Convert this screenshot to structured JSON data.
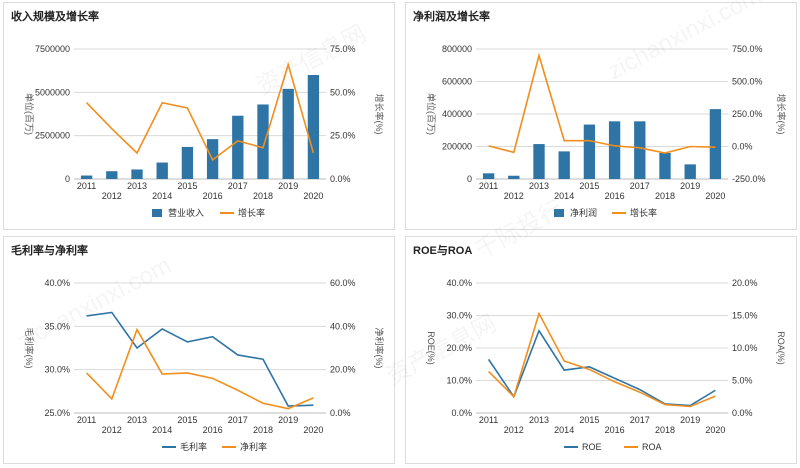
{
  "watermarks": [
    "资产信息网",
    "zichanxinxi.com",
    "千际投行"
  ],
  "colors": {
    "bar": "#2e75a6",
    "orange": "#f28e1c",
    "blueLine": "#2e75a6",
    "grid": "#d9d9d9"
  },
  "chart_data": [
    {
      "type": "bar",
      "title": "收入规模及增长率",
      "categories": [
        "2011",
        "2012",
        "2013",
        "2014",
        "2015",
        "2016",
        "2017",
        "2018",
        "2019",
        "2020"
      ],
      "ylabel": "单位(百万)",
      "y2label": "增长率(%)",
      "ylim": [
        0,
        7500000
      ],
      "yticks": [
        "0",
        "2500000",
        "5000000",
        "7500000"
      ],
      "y2lim": [
        0,
        75
      ],
      "y2ticks": [
        "0.0%",
        "25.0%",
        "50.0%",
        "75.0%"
      ],
      "grid": true,
      "legend_position": "bottom",
      "series": [
        {
          "name": "营业收入",
          "kind": "bar",
          "axis": "left",
          "values": [
            200000,
            450000,
            550000,
            950000,
            1850000,
            2300000,
            3650000,
            4300000,
            5200000,
            6000000
          ]
        },
        {
          "name": "增长率",
          "kind": "line",
          "axis": "right",
          "values": [
            44,
            29,
            15,
            44,
            41,
            11,
            22,
            18,
            66,
            15
          ]
        }
      ]
    },
    {
      "type": "bar",
      "title": "净利润及增长率",
      "categories": [
        "2011",
        "2012",
        "2013",
        "2014",
        "2015",
        "2016",
        "2017",
        "2018",
        "2019",
        "2020"
      ],
      "ylabel": "单位(百万)",
      "y2label": "增长率(%)",
      "ylim": [
        0,
        800000
      ],
      "yticks": [
        "0",
        "200000",
        "400000",
        "600000",
        "800000"
      ],
      "y2lim": [
        -250,
        750
      ],
      "y2ticks": [
        "-250.0%",
        "0.0%",
        "250.0%",
        "500.0%",
        "750.0%"
      ],
      "grid": true,
      "legend_position": "bottom",
      "series": [
        {
          "name": "净利润",
          "kind": "bar",
          "axis": "left",
          "values": [
            35000,
            20000,
            215000,
            170000,
            335000,
            355000,
            355000,
            160000,
            90000,
            430000
          ]
        },
        {
          "name": "增长率",
          "kind": "line",
          "axis": "right",
          "values": [
            5,
            -45,
            700,
            45,
            45,
            5,
            -10,
            -50,
            0,
            -5
          ]
        }
      ]
    },
    {
      "type": "line",
      "title": "毛利率与净利率",
      "categories": [
        "2011",
        "2012",
        "2013",
        "2014",
        "2015",
        "2016",
        "2017",
        "2018",
        "2019",
        "2020"
      ],
      "ylabel": "毛利率(%)",
      "y2label": "净利率(%)",
      "ylim": [
        25,
        40
      ],
      "yticks": [
        "25.0%",
        "30.0%",
        "35.0%",
        "40.0%"
      ],
      "y2lim": [
        0,
        60
      ],
      "y2ticks": [
        "0.0%",
        "20.0%",
        "40.0%",
        "60.0%"
      ],
      "grid": true,
      "legend_position": "bottom",
      "series": [
        {
          "name": "毛利率",
          "kind": "line",
          "axis": "left",
          "color": "blueLine",
          "values": [
            36.2,
            36.6,
            32.5,
            34.7,
            33.2,
            33.8,
            31.7,
            31.2,
            25.8,
            25.9
          ]
        },
        {
          "name": "净利率",
          "kind": "line",
          "axis": "right",
          "color": "orange",
          "values": [
            18.5,
            6.5,
            38.5,
            18,
            18.5,
            16,
            10.5,
            4.5,
            2,
            7
          ]
        }
      ]
    },
    {
      "type": "line",
      "title": "ROE与ROA",
      "categories": [
        "2011",
        "2012",
        "2013",
        "2014",
        "2015",
        "2016",
        "2017",
        "2018",
        "2019",
        "2020"
      ],
      "ylabel": "ROE(%)",
      "y2label": "ROA(%)",
      "ylim": [
        0,
        40
      ],
      "yticks": [
        "0.0%",
        "10.0%",
        "20.0%",
        "30.0%",
        "40.0%"
      ],
      "y2lim": [
        0,
        20
      ],
      "y2ticks": [
        "0.0%",
        "5.0%",
        "10.0%",
        "15.0%",
        "20.0%"
      ],
      "grid": true,
      "legend_position": "bottom",
      "series": [
        {
          "name": "ROE",
          "kind": "line",
          "axis": "left",
          "color": "blueLine",
          "values": [
            16.5,
            5,
            25.3,
            13.2,
            14.2,
            10.7,
            7.2,
            2.8,
            2.3,
            7
          ]
        },
        {
          "name": "ROA",
          "kind": "line",
          "axis": "right",
          "color": "orange",
          "values": [
            6.4,
            2.5,
            15.3,
            8,
            6.7,
            4.8,
            3.2,
            1.3,
            1,
            2.6
          ]
        }
      ]
    }
  ]
}
